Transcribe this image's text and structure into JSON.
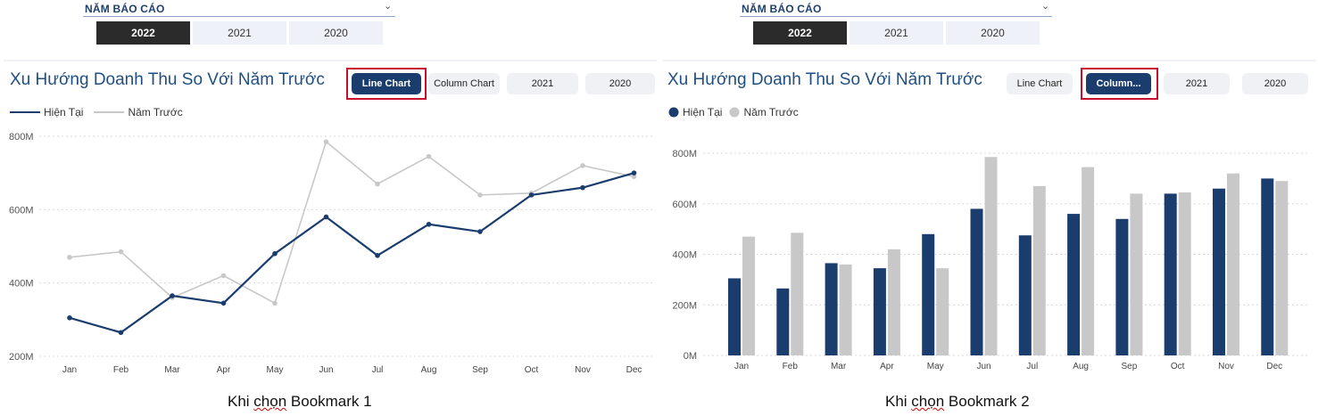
{
  "left": {
    "slicer": {
      "title": "NĂM BÁO CÁO",
      "years": [
        "2022",
        "2021",
        "2020"
      ],
      "selected": "2022"
    },
    "title": "Xu Hướng Doanh Thu So Với Năm Trước",
    "buttons": {
      "line": "Line Chart",
      "column": "Column Chart",
      "y2021": "2021",
      "y2020": "2020"
    },
    "legend": {
      "current": "Hiện Tại",
      "previous": "Năm Trước"
    },
    "caption_prefix": "Khi ",
    "caption_word": "chọn",
    "caption_suffix": " Bookmark 1"
  },
  "right": {
    "slicer": {
      "title": "NĂM BÁO CÁO",
      "years": [
        "2022",
        "2021",
        "2020"
      ],
      "selected": "2022"
    },
    "title": "Xu Hướng Doanh Thu So Với Năm Trước",
    "buttons": {
      "line": "Line Chart",
      "column": "Column...",
      "y2021": "2021",
      "y2020": "2020"
    },
    "legend": {
      "current": "Hiện Tại",
      "previous": "Năm Trước"
    },
    "caption_prefix": "Khi ",
    "caption_word": "chọn",
    "caption_suffix": " Bookmark 2"
  },
  "colors": {
    "current": "#1a3d6d",
    "previous": "#c8c8c8",
    "highlight": "#c8102e"
  },
  "chart_data": [
    {
      "type": "line",
      "categories": [
        "Jan",
        "Feb",
        "Mar",
        "Apr",
        "May",
        "Jun",
        "Jul",
        "Aug",
        "Sep",
        "Oct",
        "Nov",
        "Dec"
      ],
      "yticks": [
        "200M",
        "400M",
        "600M",
        "800M"
      ],
      "ylim": [
        200,
        800
      ],
      "series": [
        {
          "name": "Hiện Tại",
          "values": [
            305,
            265,
            365,
            345,
            480,
            580,
            475,
            560,
            540,
            640,
            660,
            700
          ]
        },
        {
          "name": "Năm Trước",
          "values": [
            470,
            485,
            360,
            420,
            345,
            785,
            670,
            745,
            640,
            645,
            720,
            690
          ]
        }
      ]
    },
    {
      "type": "bar",
      "categories": [
        "Jan",
        "Feb",
        "Mar",
        "Apr",
        "May",
        "Jun",
        "Jul",
        "Aug",
        "Sep",
        "Oct",
        "Nov",
        "Dec"
      ],
      "yticks": [
        "0M",
        "200M",
        "400M",
        "600M",
        "800M"
      ],
      "ylim": [
        0,
        800
      ],
      "series": [
        {
          "name": "Hiện Tại",
          "values": [
            305,
            265,
            365,
            345,
            480,
            580,
            475,
            560,
            540,
            640,
            660,
            700
          ]
        },
        {
          "name": "Năm Trước",
          "values": [
            470,
            485,
            360,
            420,
            345,
            785,
            670,
            745,
            640,
            645,
            720,
            690
          ]
        }
      ]
    }
  ]
}
